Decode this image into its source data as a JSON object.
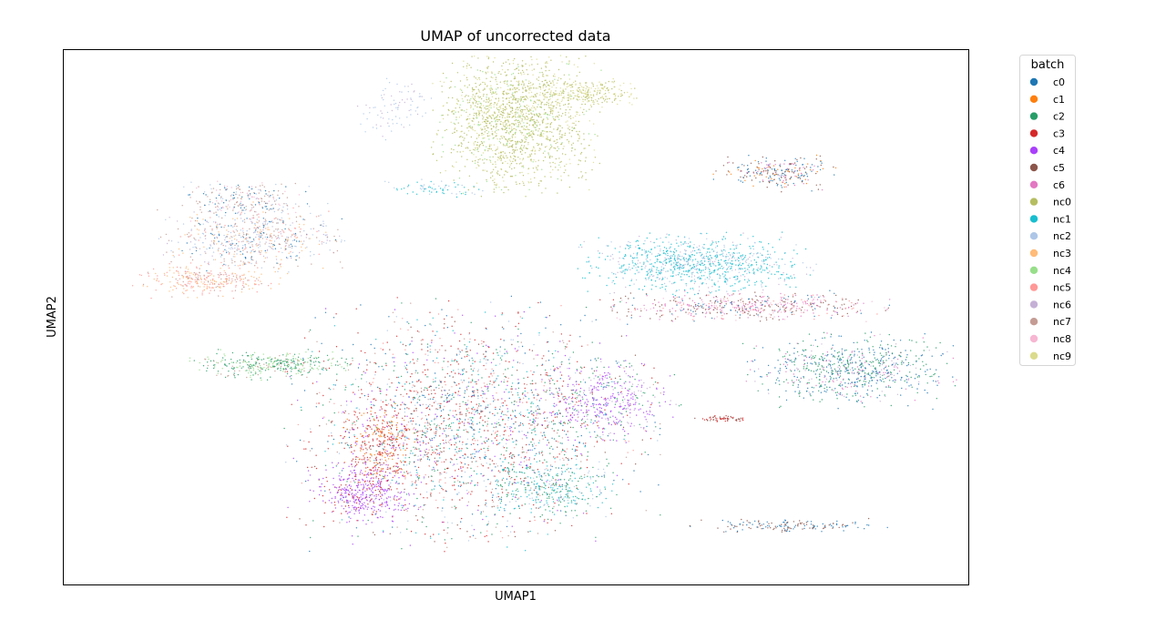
{
  "chart_data": {
    "type": "scatter",
    "title": "UMAP of uncorrected data",
    "xlabel": "UMAP1",
    "ylabel": "UMAP2",
    "legend_title": "batch",
    "legend_placement": "outside-right",
    "grid": false,
    "ticks": false,
    "series": [
      {
        "name": "c0",
        "color": "#1f77b4"
      },
      {
        "name": "c1",
        "color": "#ff7f0e"
      },
      {
        "name": "c2",
        "color": "#279e68"
      },
      {
        "name": "c3",
        "color": "#d62728"
      },
      {
        "name": "c4",
        "color": "#aa40fc"
      },
      {
        "name": "c5",
        "color": "#8c564b"
      },
      {
        "name": "c6",
        "color": "#e377c2"
      },
      {
        "name": "nc0",
        "color": "#b5bd61"
      },
      {
        "name": "nc1",
        "color": "#17becf"
      },
      {
        "name": "nc2",
        "color": "#aec7e8"
      },
      {
        "name": "nc3",
        "color": "#ffbb78"
      },
      {
        "name": "nc4",
        "color": "#98df8a"
      },
      {
        "name": "nc5",
        "color": "#ff9896"
      },
      {
        "name": "nc6",
        "color": "#c5b0d5"
      },
      {
        "name": "nc7",
        "color": "#c49c94"
      },
      {
        "name": "nc8",
        "color": "#f7b6d2"
      },
      {
        "name": "nc9",
        "color": "#dbdb8d"
      }
    ],
    "xlim": [
      0,
      1
    ],
    "ylim": [
      0,
      1
    ],
    "clusters": [
      {
        "cx": 0.45,
        "cy": 0.3,
        "rx": 0.175,
        "ry": 0.2,
        "n": 2600,
        "mix": {
          "c3": 3,
          "c2": 2,
          "c0": 2,
          "nc1": 1,
          "c5": 1,
          "nc7": 1,
          "nc2": 1,
          "c4": 1,
          "nc5": 1
        }
      },
      {
        "cx": 0.33,
        "cy": 0.17,
        "rx": 0.05,
        "ry": 0.05,
        "n": 420,
        "mix": {
          "c4": 5,
          "c3": 1
        }
      },
      {
        "cx": 0.35,
        "cy": 0.26,
        "rx": 0.04,
        "ry": 0.08,
        "n": 380,
        "mix": {
          "c3": 3,
          "c1": 2,
          "c4": 1
        }
      },
      {
        "cx": 0.6,
        "cy": 0.34,
        "rx": 0.07,
        "ry": 0.07,
        "n": 450,
        "mix": {
          "c4": 3,
          "c2": 1,
          "nc6": 1
        }
      },
      {
        "cx": 0.54,
        "cy": 0.18,
        "rx": 0.06,
        "ry": 0.05,
        "n": 320,
        "mix": {
          "nc1": 2,
          "c2": 2,
          "nc2": 1
        }
      },
      {
        "cx": 0.5,
        "cy": 0.87,
        "rx": 0.08,
        "ry": 0.12,
        "n": 1700,
        "mix": {
          "nc0": 6,
          "nc9": 2,
          "nc4": 1
        }
      },
      {
        "cx": 0.58,
        "cy": 0.92,
        "rx": 0.06,
        "ry": 0.025,
        "n": 260,
        "mix": {
          "nc9": 3,
          "nc0": 2
        }
      },
      {
        "cx": 0.7,
        "cy": 0.6,
        "rx": 0.11,
        "ry": 0.05,
        "n": 1000,
        "mix": {
          "nc1": 5,
          "nc2": 2,
          "nc6": 1
        }
      },
      {
        "cx": 0.75,
        "cy": 0.52,
        "rx": 0.14,
        "ry": 0.025,
        "n": 600,
        "mix": {
          "c6": 2,
          "c5": 2,
          "nc5": 1,
          "nc8": 1,
          "c0": 1
        }
      },
      {
        "cx": 0.87,
        "cy": 0.4,
        "rx": 0.1,
        "ry": 0.06,
        "n": 800,
        "mix": {
          "c0": 3,
          "c2": 3,
          "nc6": 1,
          "c6": 1
        }
      },
      {
        "cx": 0.79,
        "cy": 0.77,
        "rx": 0.06,
        "ry": 0.03,
        "n": 260,
        "mix": {
          "c0": 2,
          "c5": 2,
          "c1": 1,
          "c6": 1
        }
      },
      {
        "cx": 0.21,
        "cy": 0.65,
        "rx": 0.09,
        "ry": 0.06,
        "n": 700,
        "mix": {
          "nc2": 2,
          "nc7": 2,
          "nc6": 1,
          "nc5": 1,
          "nc3": 1,
          "c0": 1
        }
      },
      {
        "cx": 0.16,
        "cy": 0.57,
        "rx": 0.07,
        "ry": 0.03,
        "n": 320,
        "mix": {
          "nc5": 2,
          "nc3": 2,
          "nc7": 1
        }
      },
      {
        "cx": 0.23,
        "cy": 0.41,
        "rx": 0.08,
        "ry": 0.025,
        "n": 380,
        "mix": {
          "c2": 3,
          "nc4": 2,
          "nc7": 1
        }
      },
      {
        "cx": 0.2,
        "cy": 0.72,
        "rx": 0.06,
        "ry": 0.035,
        "n": 240,
        "mix": {
          "nc7": 2,
          "nc2": 1,
          "nc8": 1,
          "c0": 1
        }
      },
      {
        "cx": 0.81,
        "cy": 0.11,
        "rx": 0.1,
        "ry": 0.012,
        "n": 160,
        "mix": {
          "c0": 2,
          "c5": 2
        }
      },
      {
        "cx": 0.73,
        "cy": 0.31,
        "rx": 0.03,
        "ry": 0.006,
        "n": 60,
        "mix": {
          "c3": 2,
          "c5": 1
        }
      },
      {
        "cx": 0.37,
        "cy": 0.89,
        "rx": 0.04,
        "ry": 0.05,
        "n": 90,
        "mix": {
          "nc2": 2,
          "nc6": 1
        }
      },
      {
        "cx": 0.41,
        "cy": 0.74,
        "rx": 0.05,
        "ry": 0.015,
        "n": 70,
        "mix": {
          "nc1": 2,
          "nc2": 1
        }
      }
    ]
  }
}
